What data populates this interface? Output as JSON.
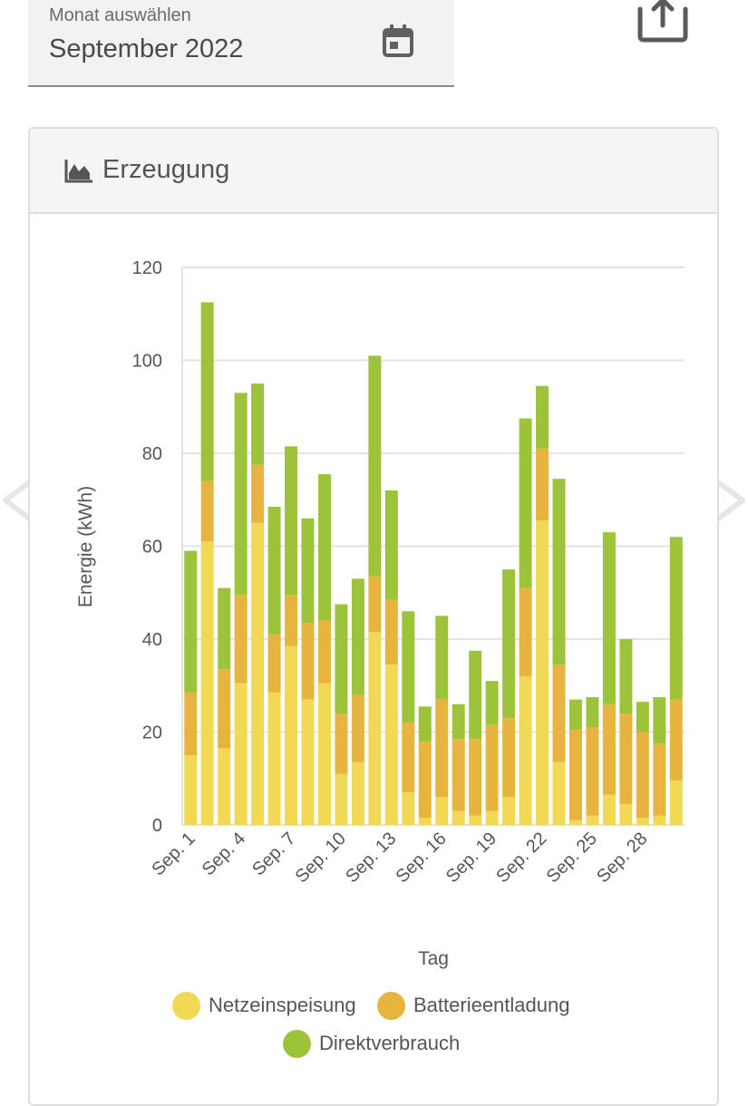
{
  "month_picker": {
    "label": "Monat auswählen",
    "value": "September 2022",
    "icon": "calendar-icon"
  },
  "share": {
    "icon": "share-icon"
  },
  "navigation": {
    "prev_icon": "chevron-left-icon",
    "next_icon": "chevron-right-icon"
  },
  "card": {
    "title": "Erzeugung",
    "icon": "area-chart-icon"
  },
  "colors": {
    "netzeinspeisung": "#f1d956",
    "batterieentladung": "#e8b440",
    "direktverbrauch": "#9dc33b",
    "grid": "#e3e3e3",
    "text": "#555555"
  },
  "chart_data": {
    "type": "bar",
    "stacked": true,
    "title": "Erzeugung",
    "xlabel": "Tag",
    "ylabel": "Energie (kWh)",
    "ylim": [
      0,
      120
    ],
    "yticks": [
      0,
      20,
      40,
      60,
      80,
      100,
      120
    ],
    "grid": true,
    "legend_position": "bottom",
    "x_tick_labels": [
      "Sep. 1",
      "Sep. 4",
      "Sep. 7",
      "Sep. 10",
      "Sep. 13",
      "Sep. 16",
      "Sep. 19",
      "Sep. 22",
      "Sep. 25",
      "Sep. 28"
    ],
    "x_tick_days": [
      1,
      4,
      7,
      10,
      13,
      16,
      19,
      22,
      25,
      28
    ],
    "categories": [
      1,
      2,
      3,
      4,
      5,
      6,
      7,
      8,
      9,
      10,
      11,
      12,
      13,
      14,
      15,
      16,
      17,
      18,
      19,
      20,
      21,
      22,
      23,
      24,
      25,
      26,
      27,
      28,
      29,
      30
    ],
    "series": [
      {
        "name": "Netzeinspeisung",
        "color_key": "netzeinspeisung",
        "values": [
          15.0,
          61.0,
          16.5,
          30.5,
          65.0,
          28.5,
          38.5,
          27.0,
          30.5,
          11.0,
          13.5,
          41.5,
          34.5,
          7.0,
          1.5,
          6.0,
          3.0,
          2.0,
          3.0,
          6.0,
          32.0,
          65.5,
          13.5,
          1.0,
          2.0,
          6.5,
          4.5,
          1.5,
          2.0,
          9.5
        ]
      },
      {
        "name": "Batterieentladung",
        "color_key": "batterieentladung",
        "values": [
          13.5,
          13.0,
          17.0,
          19.0,
          12.5,
          12.5,
          11.0,
          16.5,
          13.5,
          13.0,
          14.5,
          12.0,
          14.0,
          15.0,
          16.5,
          21.0,
          15.5,
          16.5,
          18.5,
          17.0,
          19.0,
          15.5,
          21.0,
          19.5,
          19.0,
          19.5,
          19.5,
          18.5,
          15.5,
          17.5
        ]
      },
      {
        "name": "Direktverbrauch",
        "color_key": "direktverbrauch",
        "values": [
          30.5,
          38.5,
          17.5,
          43.5,
          17.5,
          27.5,
          32.0,
          22.5,
          31.5,
          23.5,
          25.0,
          47.5,
          23.5,
          24.0,
          7.5,
          18.0,
          7.5,
          19.0,
          9.5,
          32.0,
          36.5,
          13.5,
          40.0,
          6.5,
          6.5,
          37.0,
          16.0,
          6.5,
          10.0,
          35.0
        ]
      }
    ]
  }
}
